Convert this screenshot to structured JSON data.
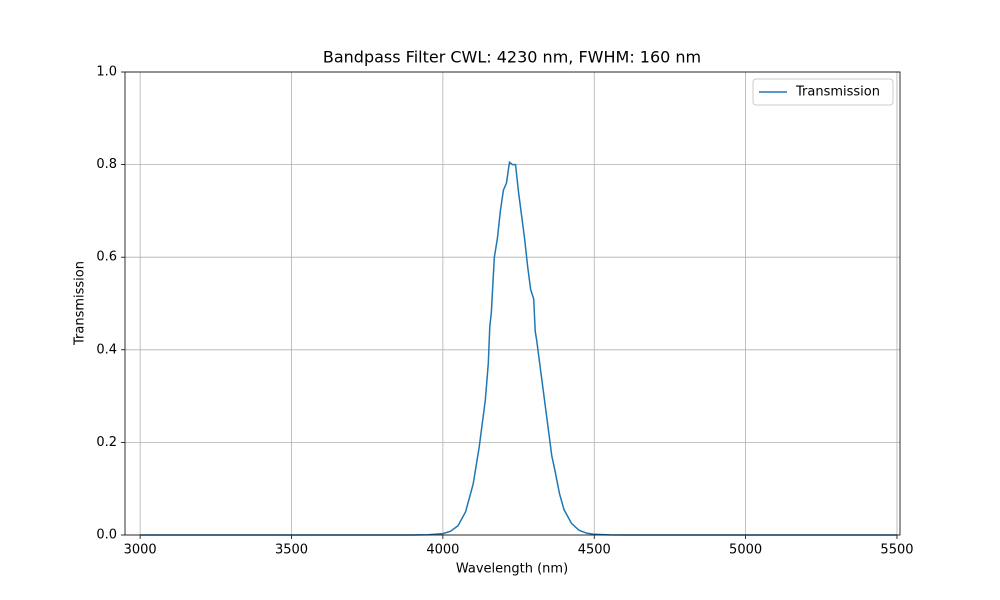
{
  "chart_data": {
    "type": "line",
    "title": "Bandpass Filter CWL: 4230 nm, FWHM: 160 nm",
    "x_label": "Wavelength (nm)",
    "y_label": "Transmission",
    "x": [
      3000,
      3500,
      3900,
      3950,
      4000,
      4025,
      4050,
      4075,
      4100,
      4120,
      4140,
      4150,
      4155,
      4160,
      4170,
      4175,
      4180,
      4190,
      4200,
      4210,
      4220,
      4230,
      4240,
      4250,
      4260,
      4270,
      4280,
      4290,
      4300,
      4305,
      4310,
      4320,
      4330,
      4340,
      4350,
      4360,
      4370,
      4385,
      4400,
      4425,
      4450,
      4475,
      4500,
      4550,
      4600,
      5000,
      5500
    ],
    "series": [
      {
        "name": "Transmission",
        "color": "#1f77b4",
        "values": [
          0,
          0,
          0,
          0.0005,
          0.003,
          0.008,
          0.02,
          0.05,
          0.11,
          0.19,
          0.29,
          0.37,
          0.45,
          0.48,
          0.6,
          0.62,
          0.64,
          0.7,
          0.745,
          0.76,
          0.805,
          0.8,
          0.8,
          0.74,
          0.69,
          0.64,
          0.58,
          0.53,
          0.51,
          0.44,
          0.42,
          0.37,
          0.32,
          0.27,
          0.22,
          0.17,
          0.14,
          0.09,
          0.055,
          0.025,
          0.01,
          0.004,
          0.0015,
          0.0002,
          0,
          0,
          0
        ]
      }
    ],
    "xlim": [
      2950,
      5510
    ],
    "ylim": [
      0,
      1
    ],
    "xticks": [
      3000,
      3500,
      4000,
      4500,
      5000,
      5500
    ],
    "yticks": [
      {
        "value": 0,
        "label": "0.0"
      },
      {
        "value": 0.2,
        "label": "0.2"
      },
      {
        "value": 0.4,
        "label": "0.4"
      },
      {
        "value": 0.6,
        "label": "0.6"
      },
      {
        "value": 0.8,
        "label": "0.8"
      },
      {
        "value": 1,
        "label": "1.0"
      }
    ],
    "grid": true,
    "legend": "upper right"
  }
}
